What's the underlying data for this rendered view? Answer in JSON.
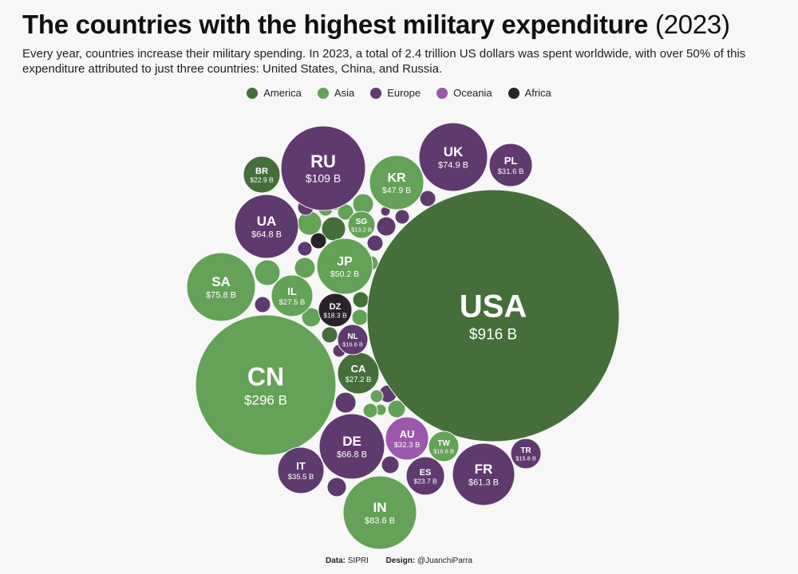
{
  "header": {
    "title": "The countries with the highest military expenditure",
    "year": "(2023)",
    "subtitle": "Every year, countries increase their military spending. In 2023, a total of 2.4 trillion US dollars was spent worldwide, with over 50% of this expenditure attributed to just three countries: United States, China, and Russia."
  },
  "colors": {
    "America": "#456e3b",
    "Asia": "#64a257",
    "Europe": "#5f3a6e",
    "Oceania": "#9b58ad",
    "Africa": "#2a2229"
  },
  "legend": [
    {
      "name": "America",
      "color": "#456e3b"
    },
    {
      "name": "Asia",
      "color": "#64a257"
    },
    {
      "name": "Europe",
      "color": "#5f3a6e"
    },
    {
      "name": "Oceania",
      "color": "#9b58ad"
    },
    {
      "name": "Africa",
      "color": "#2a2229"
    }
  ],
  "footer": {
    "data_label": "Data:",
    "data_value": "SIPRI",
    "design_label": "Design:",
    "design_value": "@JuanchiParra"
  },
  "chart_data": {
    "type": "bubble",
    "unit": "B",
    "labeled": [
      {
        "code": "USA",
        "value": 916,
        "label": "$916 B",
        "region": "America"
      },
      {
        "code": "CN",
        "value": 296,
        "label": "$296 B",
        "region": "Asia"
      },
      {
        "code": "RU",
        "value": 109,
        "label": "$109 B",
        "region": "Europe"
      },
      {
        "code": "IN",
        "value": 83.6,
        "label": "$83.6 B",
        "region": "Asia"
      },
      {
        "code": "SA",
        "value": 75.8,
        "label": "$75.8 B",
        "region": "Asia"
      },
      {
        "code": "UK",
        "value": 74.9,
        "label": "$74.9 B",
        "region": "Europe"
      },
      {
        "code": "DE",
        "value": 66.8,
        "label": "$66.8 B",
        "region": "Europe"
      },
      {
        "code": "UA",
        "value": 64.8,
        "label": "$64.8 B",
        "region": "Europe"
      },
      {
        "code": "FR",
        "value": 61.3,
        "label": "$61.3 B",
        "region": "Europe"
      },
      {
        "code": "JP",
        "value": 50.2,
        "label": "$50.2 B",
        "region": "Asia"
      },
      {
        "code": "KR",
        "value": 47.9,
        "label": "$47.9 B",
        "region": "Asia"
      },
      {
        "code": "IT",
        "value": 35.5,
        "label": "$35.5 B",
        "region": "Europe"
      },
      {
        "code": "AU",
        "value": 32.3,
        "label": "$32.3 B",
        "region": "Oceania"
      },
      {
        "code": "PL",
        "value": 31.6,
        "label": "$31.6 B",
        "region": "Europe"
      },
      {
        "code": "IL",
        "value": 27.5,
        "label": "$27.5 B",
        "region": "Asia"
      },
      {
        "code": "CA",
        "value": 27.2,
        "label": "$27.2 B",
        "region": "America"
      },
      {
        "code": "ES",
        "value": 23.7,
        "label": "$23.7 B",
        "region": "Europe"
      },
      {
        "code": "BR",
        "value": 22.9,
        "label": "$22.9 B",
        "region": "America"
      },
      {
        "code": "DZ",
        "value": 18.3,
        "label": "$18.3 B",
        "region": "Africa"
      },
      {
        "code": "NL",
        "value": 16.6,
        "label": "$16.6 B",
        "region": "Europe"
      },
      {
        "code": "TW",
        "value": 16.6,
        "label": "$16.6 B",
        "region": "Asia"
      },
      {
        "code": "TR",
        "value": 15.8,
        "label": "$15.8 B",
        "region": "Europe"
      },
      {
        "code": "SG",
        "value": 13.2,
        "label": "$13.2 B",
        "region": "Asia"
      }
    ],
    "unlabeled_regions": [
      "America",
      "Asia",
      "Asia",
      "Asia",
      "Africa",
      "Europe",
      "Asia",
      "Asia",
      "Asia",
      "Europe",
      "Asia",
      "Europe",
      "Asia",
      "America",
      "Europe",
      "Asia",
      "America",
      "Europe",
      "Asia",
      "Asia",
      "Europe",
      "Asia",
      "Europe",
      "Asia",
      "Europe",
      "Europe",
      "Europe",
      "Europe",
      "Europe",
      "Asia",
      "Europe"
    ]
  }
}
